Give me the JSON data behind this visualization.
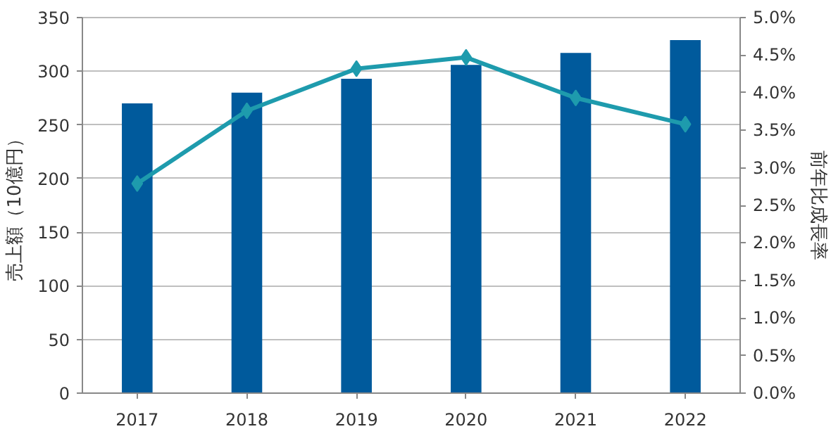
{
  "chart_data": {
    "type": "bar",
    "ylabel": "売上額（10億円）",
    "y2label": "前年比成長率",
    "categories": [
      "2017",
      "2018",
      "2019",
      "2020",
      "2021",
      "2022"
    ],
    "series": [
      {
        "color": "#005a9c",
        "values": [
          270,
          280,
          293,
          306,
          317,
          329
        ]
      },
      {
        "type": "line",
        "axis": "y2",
        "color": "#1e9bad",
        "values": [
          2.79,
          3.76,
          4.32,
          4.47,
          3.93,
          3.58
        ],
        "marker": "diamond",
        "line_style": "solid"
      }
    ],
    "ylim": [
      0,
      350
    ],
    "yticks": [
      0,
      50,
      100,
      150,
      200,
      250,
      300,
      350
    ],
    "y2lim": [
      0,
      5
    ],
    "y2ticks": [
      {
        "value": 0,
        "label": "0.0%"
      },
      {
        "value": 0.5,
        "label": "0.5%"
      },
      {
        "value": 1,
        "label": "1.0%"
      },
      {
        "value": 1.5,
        "label": "1.5%"
      },
      {
        "value": 2,
        "label": "2.0%"
      },
      {
        "value": 2.5,
        "label": "2.5%"
      },
      {
        "value": 3,
        "label": "3.0%"
      },
      {
        "value": 3.5,
        "label": "3.5%"
      },
      {
        "value": 4,
        "label": "4.0%"
      },
      {
        "value": 4.5,
        "label": "4.5%"
      },
      {
        "value": 5,
        "label": "5.0%"
      }
    ],
    "grid": "y"
  }
}
